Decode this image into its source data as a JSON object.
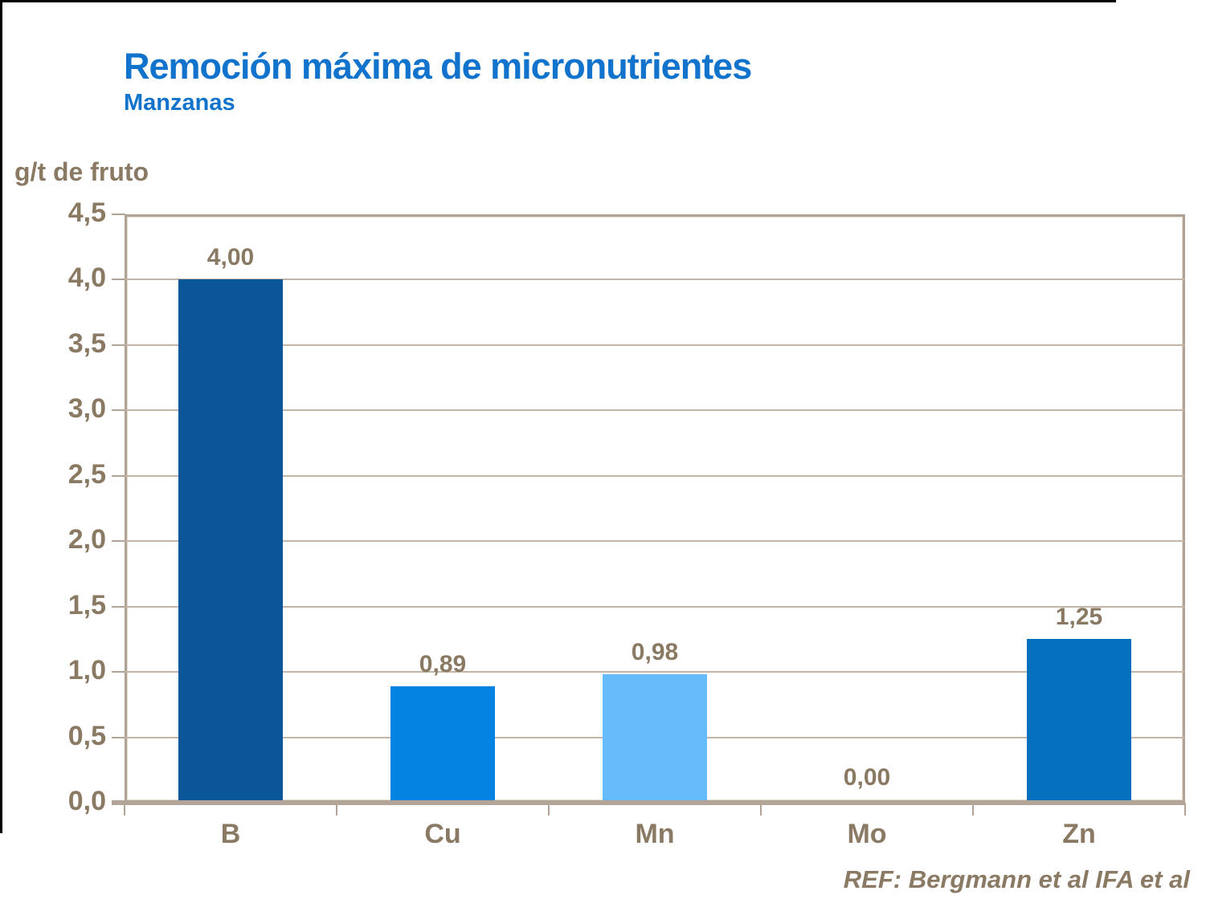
{
  "title": "Remoción máxima de micronutrientes",
  "subtitle": "Manzanas",
  "unit_label": "g/t de fruto",
  "reference": "REF: Bergmann et al IFA et al",
  "colors": {
    "title_blue": "#1173CC",
    "text_brown": "#8A7963",
    "grid_taupe": "#C3B6A8",
    "border_taupe": "#B1A394",
    "axis_taupe": "#B2A496",
    "slide_frame_black": "#000000"
  },
  "chart_data": {
    "type": "bar",
    "title": "Remoción máxima de micronutrientes",
    "subtitle": "Manzanas",
    "ylabel": "g/t de fruto",
    "categories": [
      "B",
      "Cu",
      "Mn",
      "Mo",
      "Zn"
    ],
    "values": [
      4.0,
      0.89,
      0.98,
      0.0,
      1.25
    ],
    "value_labels": [
      "4,00",
      "0,89",
      "0,98",
      "0,00",
      "1,25"
    ],
    "bar_colors": [
      "#0A5699",
      "#0583E3",
      "#66BBFB",
      "#0583E3",
      "#0570BE"
    ],
    "ylim": [
      0,
      4.5
    ],
    "ytick_step": 0.5,
    "ytick_labels": [
      "0,0",
      "0,5",
      "1,0",
      "1,5",
      "2,0",
      "2,5",
      "3,0",
      "3,5",
      "4,0",
      "4,5"
    ],
    "grid": true,
    "legend": false,
    "annotation": "REF: Bergmann et al IFA et al"
  }
}
